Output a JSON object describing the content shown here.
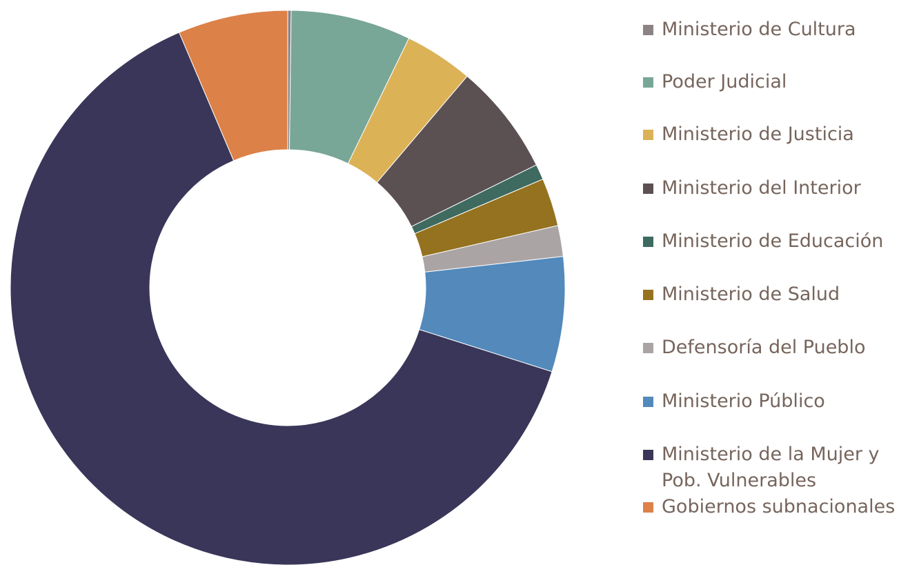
{
  "chart_data": {
    "type": "pie",
    "variant": "donut",
    "title": "",
    "legend_position": "right",
    "series": [
      {
        "name": "Ministerio de Cultura",
        "value": 0.2,
        "color": "#8c8384"
      },
      {
        "name": "Poder Judicial",
        "value": 7.0,
        "color": "#78a697"
      },
      {
        "name": "Ministerio de Justicia",
        "value": 4.0,
        "color": "#dcb257"
      },
      {
        "name": "Ministerio del Interior",
        "value": 6.5,
        "color": "#5c5152"
      },
      {
        "name": "Ministerio de Educación",
        "value": 0.9,
        "color": "#3e6a5f"
      },
      {
        "name": "Ministerio de Salud",
        "value": 2.8,
        "color": "#94721f"
      },
      {
        "name": "Defensoría del Pueblo",
        "value": 1.8,
        "color": "#aba4a5"
      },
      {
        "name": "Ministerio Público",
        "value": 6.7,
        "color": "#5389bb"
      },
      {
        "name": "Ministerio de la Mujer y Pob. Vulnerables",
        "value": 63.7,
        "color": "#393659"
      },
      {
        "name": "Gobiernos subnacionales",
        "value": 6.4,
        "color": "#dc8148"
      }
    ]
  }
}
